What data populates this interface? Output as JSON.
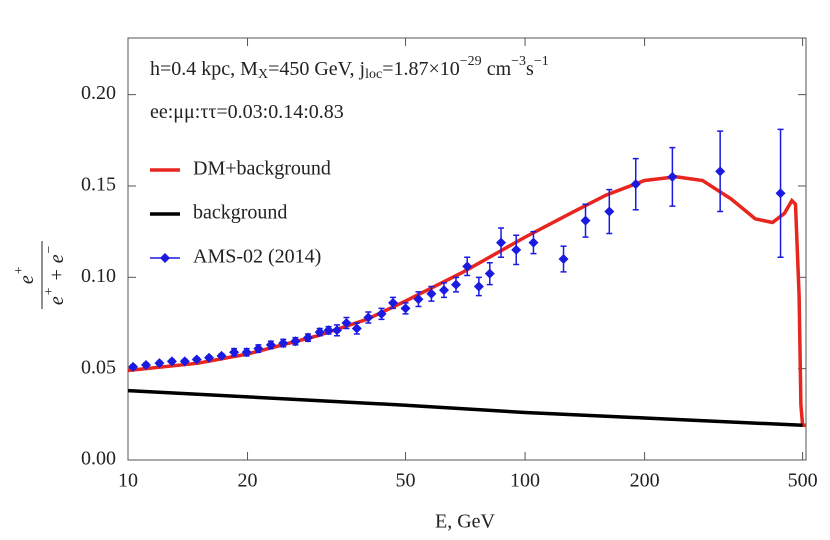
{
  "chart_data": {
    "type": "line",
    "annotations": [
      {
        "parts": [
          "h=0.4 kpc, M",
          "X",
          "=450 GeV, j",
          "loc",
          "=1.87×10",
          "−29",
          " cm",
          "−3",
          "s",
          "−1"
        ]
      },
      {
        "parts": [
          "ee:μμ:ττ=0.03:0.14:0.83"
        ]
      }
    ],
    "x_label": "E, GeV",
    "y_label": {
      "numerator": [
        "e",
        "+"
      ],
      "denominator": [
        "e",
        "+",
        " + e",
        "−"
      ]
    },
    "xscale": "log",
    "xlim": [
      10,
      510
    ],
    "xticks": [
      10,
      20,
      50,
      100,
      200,
      500
    ],
    "ylim": [
      0,
      0.231
    ],
    "yticks": [
      {
        "value": 0,
        "label": "0.00"
      },
      {
        "value": 0.05,
        "label": "0.05"
      },
      {
        "value": 0.1,
        "label": "0.10"
      },
      {
        "value": 0.15,
        "label": "0.15"
      },
      {
        "value": 0.2,
        "label": "0.20"
      }
    ],
    "legend": "upper left",
    "series": [
      {
        "name": "DM+background",
        "color": "#e8251e",
        "kind": "line",
        "x": [
          10,
          15,
          20,
          30,
          40,
          50,
          70,
          100,
          130,
          160,
          200,
          240,
          280,
          330,
          380,
          420,
          450,
          470,
          480,
          490,
          495,
          500,
          510
        ],
        "values": [
          0.049,
          0.053,
          0.058,
          0.068,
          0.077,
          0.087,
          0.103,
          0.122,
          0.135,
          0.145,
          0.153,
          0.155,
          0.153,
          0.143,
          0.132,
          0.13,
          0.135,
          0.142,
          0.14,
          0.09,
          0.03,
          0.019,
          0.019
        ]
      },
      {
        "name": "background",
        "color": "#000000",
        "kind": "line",
        "x": [
          10,
          50,
          100,
          200,
          500
        ],
        "values": [
          0.038,
          0.03,
          0.026,
          0.023,
          0.019
        ]
      },
      {
        "name": "AMS-02 (2014)",
        "color": "#1a1ae0",
        "kind": "errorbar",
        "x": [
          10.3,
          11.1,
          12.0,
          12.9,
          13.9,
          14.9,
          16.0,
          17.2,
          18.5,
          19.9,
          21.3,
          22.9,
          24.6,
          26.4,
          28.4,
          30.4,
          32.0,
          33.6,
          35.5,
          37.7,
          40.3,
          43.5,
          46.5,
          50.0,
          53.9,
          58.1,
          62.5,
          67.0,
          71.5,
          76.5,
          81.5,
          87.0,
          95.0,
          105,
          125,
          142,
          163,
          190,
          235,
          310,
          440
        ],
        "values": [
          0.051,
          0.052,
          0.053,
          0.054,
          0.054,
          0.055,
          0.056,
          0.057,
          0.059,
          0.059,
          0.061,
          0.063,
          0.064,
          0.065,
          0.067,
          0.07,
          0.071,
          0.071,
          0.075,
          0.072,
          0.078,
          0.08,
          0.086,
          0.083,
          0.088,
          0.091,
          0.093,
          0.096,
          0.106,
          0.095,
          0.102,
          0.119,
          0.115,
          0.119,
          0.11,
          0.131,
          0.136,
          0.151,
          0.155,
          0.158,
          0.146
        ],
        "errors": [
          0.001,
          0.001,
          0.001,
          0.001,
          0.001,
          0.001,
          0.001,
          0.001,
          0.002,
          0.002,
          0.002,
          0.002,
          0.002,
          0.002,
          0.002,
          0.002,
          0.002,
          0.003,
          0.003,
          0.003,
          0.003,
          0.003,
          0.003,
          0.003,
          0.004,
          0.004,
          0.004,
          0.004,
          0.005,
          0.005,
          0.006,
          0.008,
          0.008,
          0.006,
          0.007,
          0.009,
          0.012,
          0.014,
          0.016,
          0.022,
          0.035
        ]
      }
    ]
  }
}
